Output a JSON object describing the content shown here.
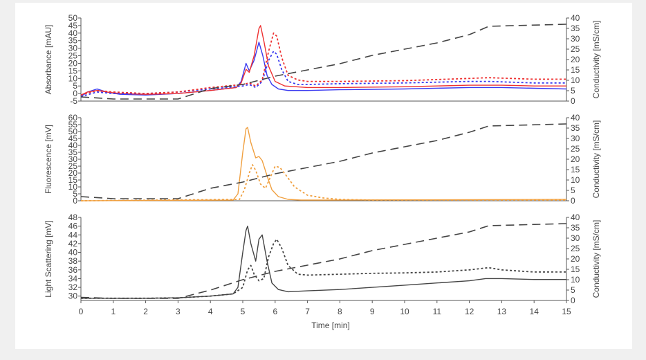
{
  "chart_data": [
    {
      "type": "line",
      "ylabel": "Absorbance [mAU]",
      "y2label": "Conductivity [mS/cm]",
      "ylim": [
        -5,
        50
      ],
      "y2lim": [
        0,
        40
      ],
      "yticks": [
        -5,
        0,
        5,
        10,
        15,
        20,
        25,
        30,
        35,
        40,
        45,
        50
      ],
      "y2ticks": [
        0,
        5,
        10,
        15,
        20,
        25,
        30,
        35,
        40
      ],
      "series": [
        {
          "color": "#3a3af0",
          "dash": "solid",
          "x": [
            0,
            0.2,
            0.5,
            0.8,
            1.2,
            2,
            3,
            4,
            4.8,
            4.95,
            5.1,
            5.2,
            5.35,
            5.5,
            5.62,
            5.75,
            5.9,
            6.1,
            6.4,
            7,
            8,
            10,
            12,
            13,
            14,
            15
          ],
          "y": [
            -2,
            1,
            3,
            1,
            -0.5,
            -1,
            0,
            2,
            4,
            8,
            20,
            15,
            22,
            34,
            25,
            12,
            6,
            3,
            2,
            2,
            2.5,
            3,
            4,
            4,
            3.5,
            3
          ]
        },
        {
          "color": "#ee3030",
          "dash": "solid",
          "x": [
            0,
            0.2,
            0.5,
            0.8,
            1.2,
            2,
            3,
            4,
            4.8,
            4.95,
            5.1,
            5.2,
            5.35,
            5.5,
            5.55,
            5.65,
            5.8,
            6,
            6.3,
            7,
            8,
            10,
            12,
            13,
            14,
            15
          ],
          "y": [
            -1,
            1,
            2,
            1,
            0,
            -0.5,
            0,
            2,
            4,
            7,
            16,
            14,
            25,
            43,
            45,
            35,
            18,
            8,
            5,
            4,
            4,
            4.5,
            5.5,
            5.5,
            5,
            5
          ]
        },
        {
          "color": "#3a3af0",
          "dash": "dot",
          "x": [
            0,
            0.5,
            1,
            2,
            3,
            4,
            4.5,
            5,
            5.2,
            5.4,
            5.6,
            5.8,
            5.95,
            6.05,
            6.2,
            6.4,
            6.7,
            7,
            8,
            10,
            12,
            12.6,
            14,
            15
          ],
          "y": [
            -2,
            1,
            0,
            0,
            1,
            3,
            4,
            5,
            6,
            4,
            8,
            22,
            28,
            26,
            16,
            8,
            6,
            6,
            6.5,
            7,
            8,
            8,
            7,
            7
          ]
        },
        {
          "color": "#ee3030",
          "dash": "dot",
          "x": [
            0,
            0.5,
            1,
            2,
            3,
            4,
            4.5,
            5,
            5.2,
            5.4,
            5.6,
            5.8,
            5.95,
            6.05,
            6.2,
            6.4,
            6.7,
            7,
            8,
            10,
            12,
            12.6,
            14,
            15
          ],
          "y": [
            -1,
            2,
            1,
            0,
            1,
            4,
            5,
            6,
            7,
            5,
            9,
            28,
            40,
            38,
            24,
            12,
            9,
            8,
            8,
            8.5,
            10,
            10.5,
            9.5,
            9.5
          ]
        },
        {
          "color": "#444444",
          "dash": "dash",
          "axis": "y2",
          "x": [
            0,
            1,
            2,
            3,
            4,
            5,
            6,
            7,
            8,
            9,
            10,
            11,
            12,
            12.6,
            15
          ],
          "y": [
            2,
            1,
            1,
            1,
            6,
            8,
            12,
            15,
            18,
            22,
            25,
            28,
            32,
            36,
            37
          ]
        }
      ]
    },
    {
      "type": "line",
      "ylabel": "Fluorescence [mV]",
      "y2label": "Conductivity [mS/cm]",
      "ylim": [
        0,
        60
      ],
      "y2lim": [
        0,
        40
      ],
      "yticks": [
        0,
        5,
        10,
        15,
        20,
        25,
        30,
        35,
        40,
        45,
        50,
        55,
        60
      ],
      "y2ticks": [
        0,
        5,
        10,
        15,
        20,
        25,
        30,
        35,
        40
      ],
      "series": [
        {
          "color": "#f0a040",
          "dash": "solid",
          "x": [
            0,
            4.7,
            4.85,
            5,
            5.1,
            5.15,
            5.25,
            5.4,
            5.5,
            5.6,
            5.75,
            5.9,
            6.1,
            6.4,
            6.8,
            7.5,
            15
          ],
          "y": [
            0,
            0.5,
            5,
            35,
            52,
            53,
            42,
            31,
            32,
            29,
            18,
            8,
            3,
            1,
            0.5,
            0.5,
            1
          ]
        },
        {
          "color": "#f0a040",
          "dash": "dot",
          "x": [
            0,
            4.9,
            5.05,
            5.2,
            5.3,
            5.4,
            5.55,
            5.7,
            5.85,
            6,
            6.15,
            6.35,
            6.6,
            7,
            7.5,
            8,
            9,
            15
          ],
          "y": [
            0,
            1,
            8,
            20,
            26,
            22,
            12,
            9,
            17,
            25,
            24,
            18,
            10,
            4,
            2,
            1,
            0.5,
            0.5
          ]
        },
        {
          "color": "#444444",
          "dash": "dash",
          "axis": "y2",
          "x": [
            0,
            1,
            2,
            3,
            4,
            5,
            6,
            7,
            8,
            9,
            10,
            11,
            12,
            12.6,
            15
          ],
          "y": [
            2,
            1,
            1,
            1,
            6,
            9,
            13,
            16,
            19,
            23,
            26,
            29,
            33,
            36,
            37
          ]
        }
      ]
    },
    {
      "type": "line",
      "ylabel": "Light Scattering [mV]",
      "y2label": "Conductivity [mS/cm]",
      "xlabel": "Time [min]",
      "xlim": [
        0,
        15
      ],
      "xticks": [
        0,
        1,
        2,
        3,
        4,
        5,
        6,
        7,
        8,
        9,
        10,
        11,
        12,
        13,
        14,
        15
      ],
      "ylim": [
        29,
        48
      ],
      "y2lim": [
        0,
        40
      ],
      "yticks": [
        30,
        32,
        34,
        36,
        38,
        40,
        42,
        44,
        46,
        48
      ],
      "y2ticks": [
        0,
        5,
        10,
        15,
        20,
        25,
        30,
        35,
        40
      ],
      "series": [
        {
          "color": "#444444",
          "dash": "solid",
          "x": [
            0,
            2,
            3,
            4,
            4.7,
            4.85,
            5,
            5.1,
            5.15,
            5.25,
            5.4,
            5.5,
            5.6,
            5.75,
            5.9,
            6.1,
            6.4,
            7,
            8,
            9,
            10,
            11,
            12,
            12.5,
            13,
            14,
            15
          ],
          "y": [
            29.5,
            29.5,
            29.6,
            30,
            30.5,
            32,
            40,
            45,
            46,
            42,
            38,
            43,
            44,
            38,
            33,
            31.5,
            31,
            31.2,
            31.5,
            32,
            32.5,
            33,
            33.5,
            34,
            34,
            33.8,
            33.8
          ]
        },
        {
          "color": "#444444",
          "dash": "dot",
          "x": [
            0,
            2,
            3,
            4,
            4.7,
            5,
            5.15,
            5.25,
            5.35,
            5.5,
            5.65,
            5.8,
            5.95,
            6.05,
            6.2,
            6.4,
            6.7,
            7,
            8,
            9,
            10,
            11,
            12,
            12.6,
            13,
            14,
            15
          ],
          "y": [
            29.5,
            29.5,
            29.6,
            30,
            30.5,
            32,
            36,
            37,
            35,
            33.5,
            34,
            39,
            42,
            43,
            41,
            37,
            35,
            34.8,
            35,
            35.2,
            35.3,
            35.5,
            36,
            36.5,
            36,
            35.5,
            35.5
          ]
        },
        {
          "color": "#444444",
          "dash": "dash",
          "axis": "y2",
          "x": [
            0,
            1,
            2,
            3,
            4,
            5,
            6,
            7,
            8,
            9,
            10,
            11,
            12,
            12.6,
            15
          ],
          "y": [
            1.5,
            1,
            1,
            1,
            5,
            10,
            14,
            17,
            20,
            24,
            27,
            30,
            33,
            36,
            37
          ]
        }
      ]
    }
  ]
}
